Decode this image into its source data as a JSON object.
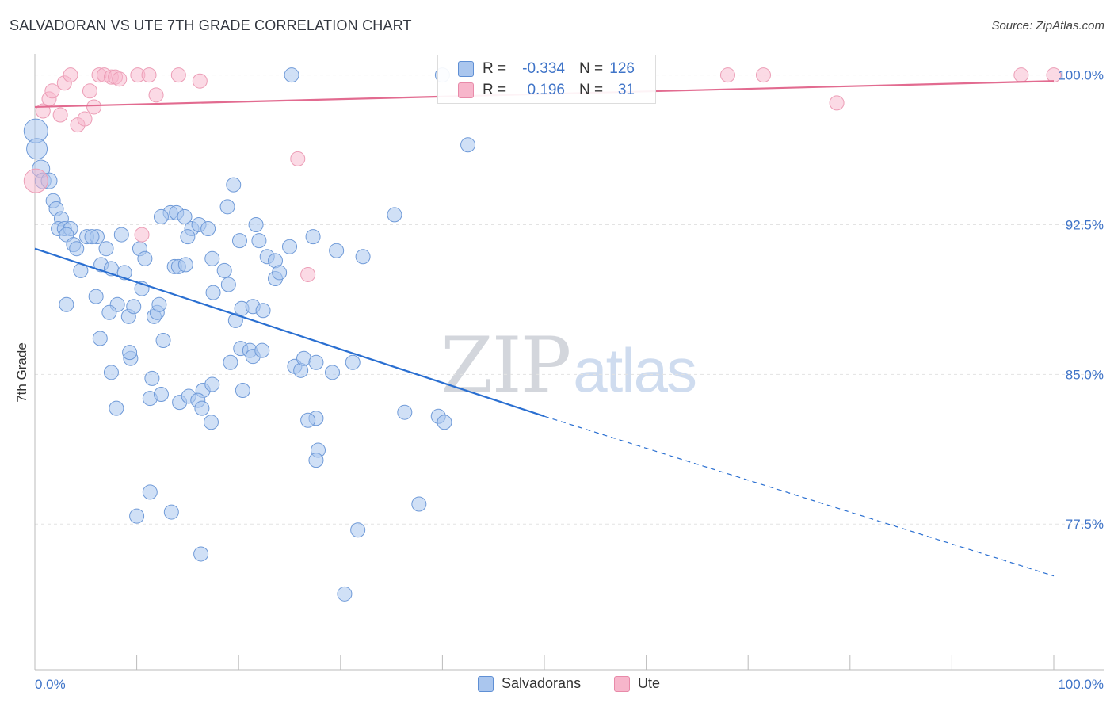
{
  "title": "SALVADORAN VS UTE 7TH GRADE CORRELATION CHART",
  "source": "Source: ZipAtlas.com",
  "watermark": {
    "zip": "ZIP",
    "atlas": "atlas"
  },
  "colors": {
    "blue": "#3f74c8",
    "blue_fill": "#aac6ee",
    "blue_line": "#2a6fd1",
    "pink_fill": "#f7b6cb",
    "pink_line": "#e26b90",
    "grid": "#e3e3e3",
    "axis": "#bbbbbb"
  },
  "stats": {
    "row1": {
      "r_label": "R =",
      "r_value": "-0.334",
      "n_label": "N =",
      "n_value": "126"
    },
    "row2": {
      "r_label": "R =",
      "r_value": "0.196",
      "n_label": "N =",
      "n_value": "31"
    }
  },
  "legend": {
    "salvadorans": "Salvadorans",
    "ute": "Ute"
  },
  "chart_data": {
    "type": "scatter",
    "title": "SALVADORAN VS UTE 7TH GRADE CORRELATION CHART",
    "xlabel": "",
    "ylabel": "7th Grade",
    "xlim": [
      0,
      100
    ],
    "ylim": [
      70.2,
      100.9
    ],
    "x_tick_labels": [
      "0.0%",
      "100.0%"
    ],
    "y_ticks": [
      {
        "value": 100.0,
        "label": "100.0%"
      },
      {
        "value": 92.5,
        "label": "92.5%"
      },
      {
        "value": 85.0,
        "label": "85.0%"
      },
      {
        "value": 77.5,
        "label": "77.5%"
      }
    ],
    "series": [
      {
        "name": "Salvadorans",
        "trend": {
          "x0": 0,
          "y0": 91.3,
          "x1": 50,
          "y1": 82.9,
          "dashed_to_x": 100,
          "dashed_to_y": 74.9
        },
        "points": [
          [
            0.1,
            97.2,
            14
          ],
          [
            0.2,
            96.3,
            12
          ],
          [
            0.6,
            95.3,
            10
          ],
          [
            0.8,
            94.7,
            9
          ],
          [
            1.4,
            94.7,
            9
          ],
          [
            1.8,
            93.7,
            8
          ],
          [
            2.1,
            93.3,
            8
          ],
          [
            2.6,
            92.8,
            8
          ],
          [
            2.3,
            92.3,
            8
          ],
          [
            2.9,
            92.3,
            8
          ],
          [
            3.5,
            92.3,
            8
          ],
          [
            3.1,
            92.0,
            8
          ],
          [
            3.8,
            91.5,
            8
          ],
          [
            4.1,
            91.3,
            8
          ],
          [
            4.5,
            90.2,
            8
          ],
          [
            5.1,
            91.9,
            8
          ],
          [
            6.1,
            91.9,
            8
          ],
          [
            5.6,
            91.9,
            8
          ],
          [
            6.5,
            90.5,
            8
          ],
          [
            6.0,
            88.9,
            8
          ],
          [
            7.0,
            91.3,
            8
          ],
          [
            7.5,
            90.3,
            8
          ],
          [
            8.5,
            92.0,
            8
          ],
          [
            8.8,
            90.1,
            8
          ],
          [
            8.1,
            88.5,
            8
          ],
          [
            9.2,
            87.9,
            8
          ],
          [
            9.7,
            88.4,
            8
          ],
          [
            10.3,
            91.3,
            8
          ],
          [
            10.8,
            90.8,
            8
          ],
          [
            10.5,
            89.3,
            8
          ],
          [
            11.7,
            87.9,
            8
          ],
          [
            12.0,
            88.1,
            8
          ],
          [
            12.2,
            88.5,
            8
          ],
          [
            12.6,
            86.7,
            8
          ],
          [
            13.3,
            93.1,
            8
          ],
          [
            12.4,
            92.9,
            8
          ],
          [
            13.9,
            93.1,
            8
          ],
          [
            14.7,
            92.9,
            8
          ],
          [
            15.4,
            92.3,
            8
          ],
          [
            16.1,
            92.5,
            8
          ],
          [
            15.0,
            91.9,
            8
          ],
          [
            13.7,
            90.4,
            8
          ],
          [
            14.1,
            90.4,
            8
          ],
          [
            14.8,
            90.5,
            8
          ],
          [
            17.0,
            92.3,
            8
          ],
          [
            18.9,
            93.4,
            8
          ],
          [
            19.5,
            94.5,
            8
          ],
          [
            20.1,
            91.7,
            8
          ],
          [
            21.7,
            92.5,
            8
          ],
          [
            22.0,
            91.7,
            8
          ],
          [
            22.8,
            90.9,
            8
          ],
          [
            23.6,
            90.7,
            8
          ],
          [
            23.6,
            89.8,
            8
          ],
          [
            24.0,
            90.1,
            8
          ],
          [
            17.5,
            89.1,
            8
          ],
          [
            17.4,
            90.8,
            8
          ],
          [
            18.6,
            90.2,
            8
          ],
          [
            19.0,
            89.5,
            8
          ],
          [
            19.7,
            87.7,
            8
          ],
          [
            20.3,
            88.3,
            8
          ],
          [
            21.4,
            88.4,
            8
          ],
          [
            22.4,
            88.2,
            8
          ],
          [
            25.0,
            91.4,
            8
          ],
          [
            27.3,
            91.9,
            8
          ],
          [
            29.6,
            91.2,
            8
          ],
          [
            32.2,
            90.9,
            8
          ],
          [
            35.3,
            93.0,
            8
          ],
          [
            42.5,
            96.5,
            8
          ],
          [
            3.1,
            88.5,
            8
          ],
          [
            6.4,
            86.8,
            8
          ],
          [
            7.3,
            88.1,
            8
          ],
          [
            9.4,
            85.8,
            8
          ],
          [
            9.3,
            86.1,
            8
          ],
          [
            7.5,
            85.1,
            8
          ],
          [
            11.5,
            84.8,
            8
          ],
          [
            11.3,
            83.8,
            8
          ],
          [
            12.4,
            84.0,
            8
          ],
          [
            14.2,
            83.6,
            8
          ],
          [
            15.1,
            83.9,
            8
          ],
          [
            16.5,
            84.2,
            8
          ],
          [
            16.0,
            83.7,
            8
          ],
          [
            16.4,
            83.3,
            8
          ],
          [
            17.4,
            84.5,
            8
          ],
          [
            17.3,
            82.6,
            8
          ],
          [
            19.2,
            85.6,
            8
          ],
          [
            20.4,
            84.2,
            8
          ],
          [
            20.2,
            86.3,
            8
          ],
          [
            21.1,
            86.2,
            8
          ],
          [
            21.4,
            85.9,
            8
          ],
          [
            22.3,
            86.2,
            8
          ],
          [
            25.5,
            85.4,
            8
          ],
          [
            26.1,
            85.2,
            8
          ],
          [
            26.4,
            85.8,
            8
          ],
          [
            27.6,
            85.6,
            8
          ],
          [
            29.2,
            85.1,
            8
          ],
          [
            31.2,
            85.6,
            8
          ],
          [
            27.6,
            82.8,
            8
          ],
          [
            26.8,
            82.7,
            8
          ],
          [
            27.8,
            81.2,
            8
          ],
          [
            27.6,
            80.7,
            8
          ],
          [
            37.7,
            78.5,
            8
          ],
          [
            36.3,
            83.1,
            8
          ],
          [
            39.6,
            82.9,
            8
          ],
          [
            40.2,
            82.6,
            8
          ],
          [
            8.0,
            83.3,
            8
          ],
          [
            11.3,
            79.1,
            8
          ],
          [
            10.0,
            77.9,
            8
          ],
          [
            13.4,
            78.1,
            8
          ],
          [
            16.3,
            76.0,
            8
          ],
          [
            31.7,
            77.2,
            8
          ],
          [
            30.4,
            74.0,
            8
          ],
          [
            25.2,
            100.0,
            8
          ],
          [
            40.0,
            100.0,
            8
          ]
        ]
      },
      {
        "name": "Ute",
        "trend": {
          "x0": 0,
          "y0": 98.4,
          "x1": 100,
          "y1": 99.7
        },
        "points": [
          [
            0.1,
            94.7,
            14
          ],
          [
            0.8,
            98.2,
            8
          ],
          [
            1.4,
            98.8,
            8
          ],
          [
            1.7,
            99.2,
            8
          ],
          [
            2.5,
            98.0,
            8
          ],
          [
            2.9,
            99.6,
            8
          ],
          [
            3.5,
            100.0,
            8
          ],
          [
            4.2,
            97.5,
            8
          ],
          [
            4.9,
            97.8,
            8
          ],
          [
            5.4,
            99.2,
            8
          ],
          [
            5.8,
            98.4,
            8
          ],
          [
            6.3,
            100.0,
            8
          ],
          [
            6.8,
            100.0,
            8
          ],
          [
            7.5,
            99.9,
            8
          ],
          [
            7.9,
            99.9,
            8
          ],
          [
            8.3,
            99.8,
            8
          ],
          [
            10.1,
            100.0,
            8
          ],
          [
            11.2,
            100.0,
            8
          ],
          [
            11.9,
            99.0,
            8
          ],
          [
            14.1,
            100.0,
            8
          ],
          [
            16.2,
            99.7,
            8
          ],
          [
            10.5,
            92.0,
            8
          ],
          [
            25.8,
            95.8,
            8
          ],
          [
            26.8,
            90.0,
            8
          ],
          [
            68.0,
            100.0,
            8
          ],
          [
            71.5,
            100.0,
            8
          ],
          [
            78.7,
            98.6,
            8
          ],
          [
            96.8,
            100.0,
            8
          ],
          [
            100.0,
            100.0,
            8
          ]
        ]
      }
    ]
  }
}
